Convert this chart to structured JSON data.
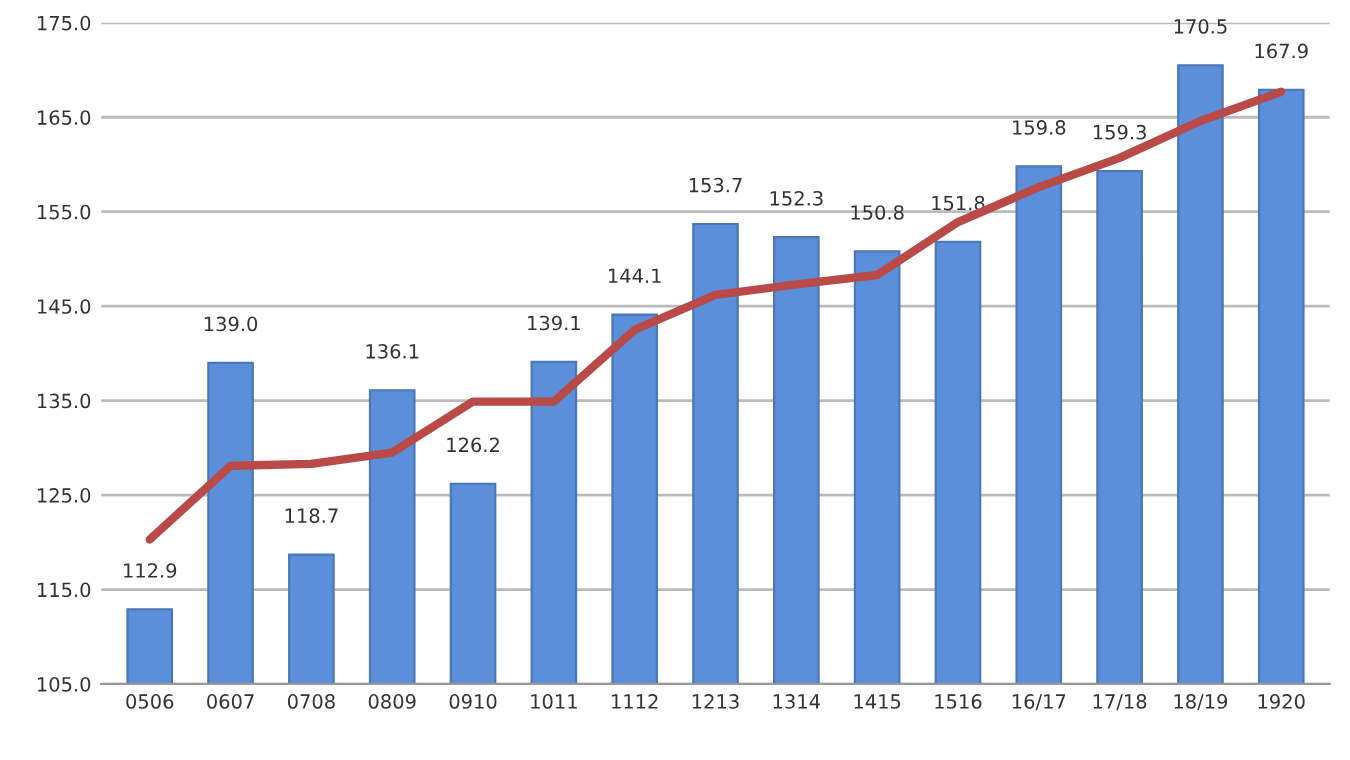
{
  "chart_data": {
    "type": "bar",
    "categories": [
      "0506",
      "0607",
      "0708",
      "0809",
      "0910",
      "1011",
      "1112",
      "1213",
      "1314",
      "1415",
      "1516",
      "16/17",
      "17/18",
      "18/19",
      "1920"
    ],
    "series": [
      {
        "color": "#5b8fd9",
        "values": [
          112.9,
          139.0,
          118.7,
          136.1,
          126.2,
          139.1,
          144.1,
          153.7,
          152.3,
          150.8,
          151.8,
          159.8,
          159.3,
          170.5,
          167.9
        ],
        "value_labels": [
          "112.9",
          "139.0",
          "118.7",
          "136.1",
          "126.2",
          "139.1",
          "144.1",
          "153.7",
          "152.3",
          "150.8",
          "151.8",
          "159.8",
          "159.3",
          "170.5",
          "167.9"
        ]
      },
      {
        "type": "line",
        "color": "#b94a48",
        "values": [
          120.3,
          128.1,
          128.3,
          129.5,
          134.9,
          134.9,
          142.5,
          146.2,
          147.3,
          148.3,
          153.9,
          157.6,
          160.7,
          164.6,
          167.7
        ]
      }
    ],
    "ylim": [
      105,
      175
    ],
    "yticks": [
      {
        "value": 105,
        "label": "105.0"
      },
      {
        "value": 115,
        "label": "115.0"
      },
      {
        "value": 125,
        "label": "125.0"
      },
      {
        "value": 135,
        "label": "135.0"
      },
      {
        "value": 145,
        "label": "145.0"
      },
      {
        "value": 155,
        "label": "155.0"
      },
      {
        "value": 165,
        "label": "165.0"
      },
      {
        "value": 175,
        "label": "175.0"
      }
    ],
    "grid": "y",
    "legend": false
  }
}
